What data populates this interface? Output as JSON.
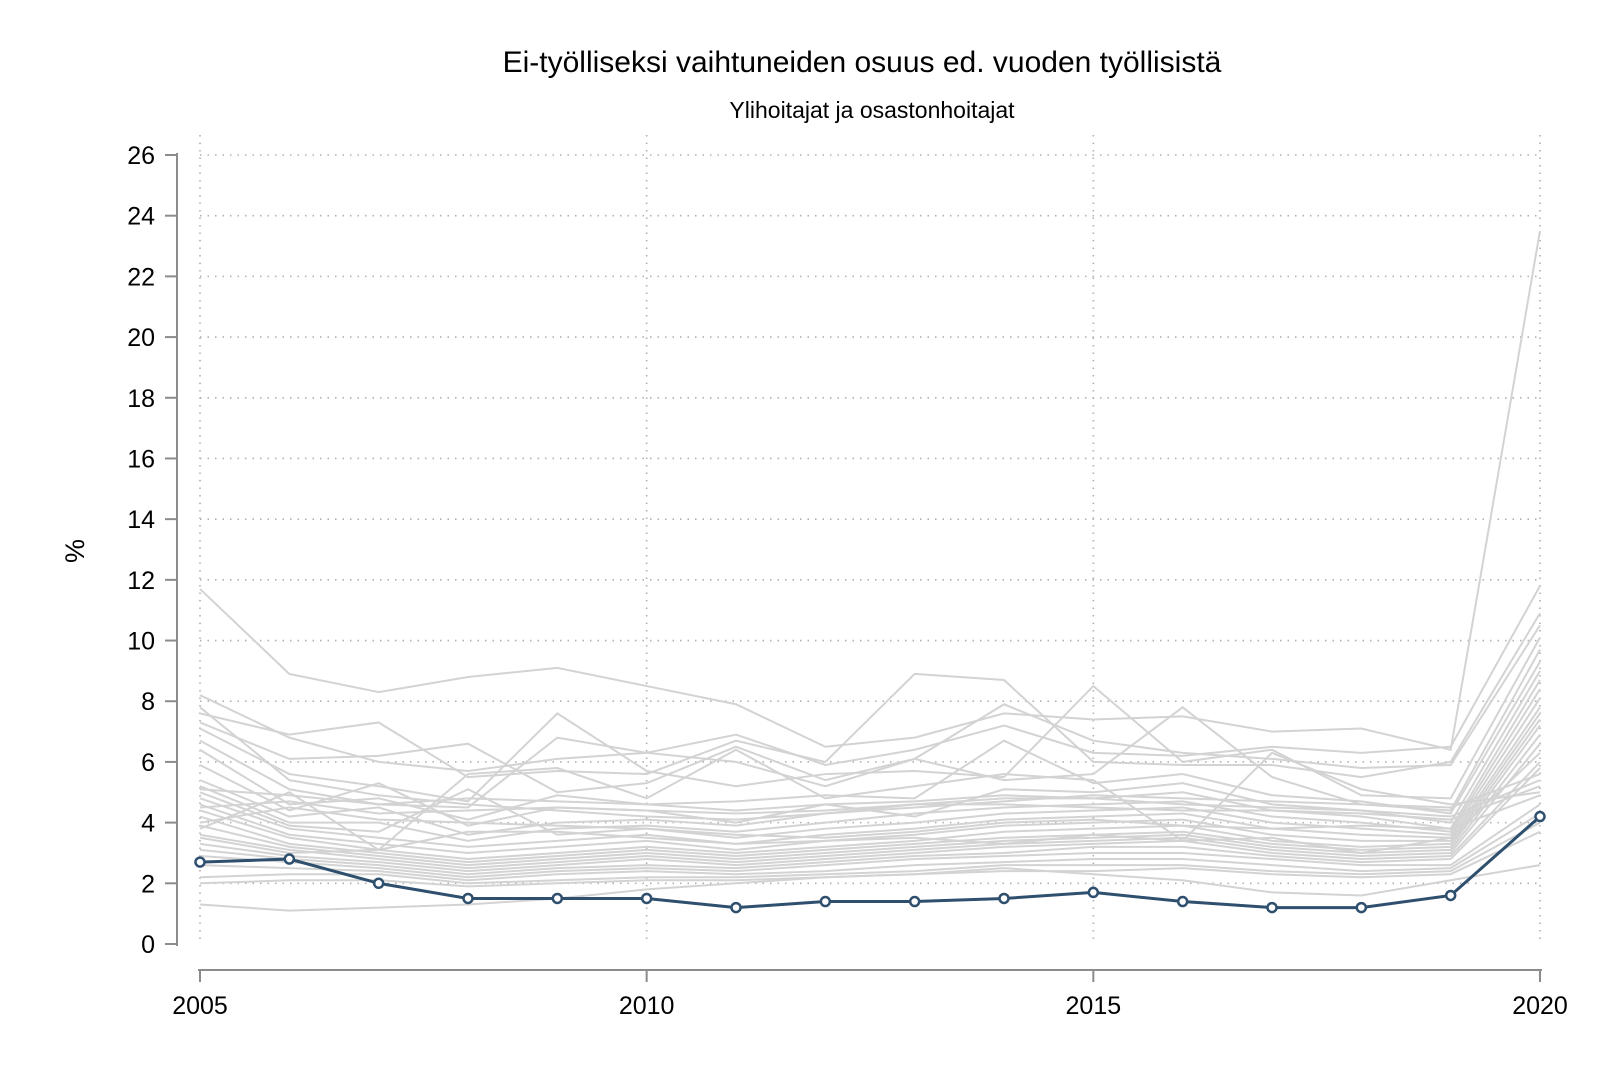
{
  "chart_data": {
    "type": "line",
    "title": "Ei-työlliseksi vaihtuneiden osuus ed. vuoden työllisistä",
    "subtitle": "Ylihoitajat ja osastonhoitajat",
    "ylabel": "%",
    "xlabel": "",
    "ylim": [
      0,
      26
    ],
    "xlim": [
      2005,
      2020
    ],
    "x_ticks": [
      2005,
      2010,
      2015,
      2020
    ],
    "y_ticks": [
      0,
      2,
      4,
      6,
      8,
      10,
      12,
      14,
      16,
      18,
      20,
      22,
      24,
      26
    ],
    "grid": "dotted, major ticks",
    "legend": "none",
    "x": [
      2005,
      2006,
      2007,
      2008,
      2009,
      2010,
      2011,
      2012,
      2013,
      2014,
      2015,
      2016,
      2017,
      2018,
      2019,
      2020
    ],
    "highlight": {
      "color": "#2e4f6e",
      "values": [
        2.7,
        2.8,
        2.0,
        1.5,
        1.5,
        1.5,
        1.2,
        1.4,
        1.4,
        1.5,
        1.7,
        1.4,
        1.2,
        1.2,
        1.6,
        4.2
      ]
    },
    "background_color": "#d3d3d3",
    "background_series": [
      {
        "values": [
          11.7,
          8.9,
          8.3,
          8.8,
          9.1,
          8.5,
          7.9,
          6.5,
          6.8,
          7.6,
          7.4,
          7.5,
          7.0,
          7.1,
          6.4,
          23.5
        ]
      },
      {
        "values": [
          8.2,
          6.8,
          6.0,
          5.7,
          6.1,
          6.3,
          6.9,
          5.9,
          6.4,
          7.2,
          6.3,
          6.2,
          6.5,
          6.3,
          6.5,
          11.8
        ]
      },
      {
        "values": [
          7.6,
          6.9,
          7.3,
          5.5,
          5.7,
          5.6,
          6.7,
          6.0,
          8.9,
          8.7,
          6.0,
          5.9,
          5.9,
          5.5,
          6.0,
          10.9
        ]
      },
      {
        "values": [
          7.3,
          6.1,
          6.2,
          6.6,
          5.0,
          5.3,
          6.5,
          5.4,
          6.1,
          7.9,
          6.7,
          6.3,
          6.1,
          5.8,
          5.9,
          10.5
        ]
      },
      {
        "values": [
          7.1,
          5.6,
          5.2,
          4.7,
          7.6,
          5.7,
          5.2,
          5.6,
          5.7,
          5.5,
          8.5,
          6.0,
          6.4,
          4.9,
          4.8,
          10.1
        ]
      },
      {
        "values": [
          6.7,
          5.1,
          4.6,
          4.5,
          6.8,
          6.3,
          6.0,
          5.2,
          6.1,
          5.4,
          5.6,
          7.8,
          5.5,
          4.6,
          4.4,
          9.7
        ]
      },
      {
        "values": [
          6.4,
          4.6,
          4.8,
          4.1,
          4.9,
          4.6,
          4.7,
          4.9,
          4.8,
          6.7,
          5.3,
          5.6,
          4.9,
          4.7,
          4.3,
          9.3
        ]
      },
      {
        "values": [
          5.9,
          4.4,
          5.3,
          3.9,
          4.5,
          4.4,
          4.0,
          4.6,
          4.2,
          5.1,
          5.0,
          5.3,
          4.6,
          4.4,
          4.0,
          9.0
        ]
      },
      {
        "values": [
          5.4,
          4.2,
          4.5,
          3.6,
          4.0,
          4.1,
          3.9,
          4.3,
          4.6,
          4.8,
          4.8,
          5.0,
          4.4,
          4.2,
          3.8,
          8.7
        ]
      },
      {
        "values": [
          5.2,
          4.0,
          4.0,
          3.4,
          3.8,
          3.9,
          3.7,
          4.0,
          4.3,
          4.5,
          4.6,
          4.7,
          4.2,
          4.0,
          3.7,
          8.4
        ]
      },
      {
        "values": [
          5.0,
          3.9,
          3.7,
          5.1,
          3.6,
          3.8,
          3.5,
          3.8,
          4.0,
          4.3,
          4.4,
          4.5,
          4.0,
          3.8,
          3.6,
          8.1
        ]
      },
      {
        "values": [
          4.8,
          3.8,
          3.5,
          3.2,
          3.4,
          3.6,
          3.3,
          3.6,
          3.8,
          4.1,
          4.2,
          4.3,
          3.8,
          3.6,
          3.5,
          7.8
        ]
      },
      {
        "values": [
          4.6,
          3.6,
          3.3,
          3.0,
          3.2,
          3.4,
          3.1,
          3.4,
          3.6,
          3.9,
          4.0,
          4.1,
          3.6,
          3.4,
          3.4,
          7.6
        ]
      },
      {
        "values": [
          4.4,
          3.5,
          3.1,
          2.8,
          3.0,
          3.2,
          3.0,
          3.2,
          3.4,
          3.7,
          3.8,
          3.9,
          3.4,
          3.2,
          3.3,
          7.4
        ]
      },
      {
        "values": [
          4.2,
          3.3,
          3.0,
          2.7,
          2.9,
          3.1,
          2.9,
          3.1,
          3.3,
          3.5,
          3.6,
          3.7,
          3.3,
          3.1,
          3.2,
          7.2
        ]
      },
      {
        "values": [
          3.9,
          3.2,
          2.9,
          2.6,
          2.8,
          3.0,
          2.8,
          3.0,
          3.2,
          3.4,
          3.5,
          3.6,
          3.2,
          3.0,
          3.1,
          6.9
        ]
      },
      {
        "values": [
          3.6,
          3.1,
          2.8,
          2.5,
          2.7,
          2.9,
          2.7,
          2.9,
          3.1,
          3.3,
          3.4,
          3.5,
          3.1,
          2.9,
          3.0,
          6.6
        ]
      },
      {
        "values": [
          3.5,
          3.0,
          3.1,
          3.7,
          3.7,
          3.5,
          3.3,
          3.4,
          3.5,
          3.3,
          3.6,
          3.4,
          3.5,
          3.0,
          3.5,
          6.3
        ]
      },
      {
        "values": [
          3.3,
          2.9,
          2.7,
          2.4,
          2.6,
          2.8,
          2.6,
          2.8,
          3.0,
          3.2,
          3.3,
          3.4,
          3.0,
          2.8,
          2.9,
          6.0
        ]
      },
      {
        "values": [
          3.1,
          2.8,
          2.6,
          2.3,
          2.5,
          2.6,
          2.5,
          2.7,
          2.9,
          3.0,
          3.2,
          3.2,
          2.9,
          2.7,
          2.8,
          5.8
        ]
      },
      {
        "values": [
          7.8,
          5.4,
          4.9,
          4.6,
          4.4,
          4.2,
          4.1,
          4.3,
          4.5,
          4.7,
          4.9,
          4.8,
          4.7,
          4.6,
          4.5,
          5.6
        ]
      },
      {
        "values": [
          5.1,
          4.9,
          4.6,
          4.8,
          4.7,
          4.6,
          4.4,
          4.6,
          4.7,
          4.9,
          4.8,
          4.6,
          4.5,
          4.4,
          4.2,
          5.4
        ]
      },
      {
        "values": [
          4.5,
          4.7,
          4.3,
          4.4,
          4.5,
          4.4,
          4.3,
          4.4,
          4.6,
          4.6,
          4.5,
          4.4,
          4.4,
          4.3,
          4.1,
          5.2
        ]
      },
      {
        "values": [
          3.8,
          5.0,
          3.1,
          5.6,
          5.8,
          4.8,
          6.4,
          4.8,
          5.2,
          5.6,
          5.4,
          3.4,
          6.3,
          5.1,
          4.6,
          5.0
        ]
      },
      {
        "values": [
          4.0,
          4.5,
          4.1,
          4.0,
          3.9,
          3.8,
          3.6,
          3.5,
          3.7,
          4.0,
          4.1,
          3.9,
          3.8,
          3.9,
          3.8,
          4.9
        ]
      },
      {
        "values": [
          2.9,
          2.7,
          2.5,
          2.2,
          2.4,
          2.5,
          2.4,
          2.6,
          2.8,
          2.9,
          3.0,
          3.0,
          2.8,
          2.6,
          2.6,
          4.6
        ]
      },
      {
        "values": [
          2.6,
          2.5,
          2.4,
          2.1,
          2.3,
          2.4,
          2.3,
          2.4,
          2.6,
          2.7,
          2.8,
          2.8,
          2.6,
          2.4,
          2.5,
          4.3
        ]
      },
      {
        "values": [
          2.2,
          2.3,
          2.3,
          2.0,
          2.1,
          2.2,
          2.2,
          2.3,
          2.4,
          2.6,
          2.6,
          2.6,
          2.4,
          2.3,
          2.4,
          4.0
        ]
      },
      {
        "values": [
          2.0,
          2.1,
          2.1,
          1.9,
          2.0,
          2.1,
          2.1,
          2.2,
          2.3,
          2.4,
          2.4,
          2.5,
          2.3,
          2.2,
          2.3,
          3.7
        ]
      },
      {
        "values": [
          1.3,
          1.1,
          1.2,
          1.3,
          1.5,
          1.8,
          2.0,
          2.2,
          2.3,
          2.5,
          2.3,
          2.1,
          1.7,
          1.6,
          2.1,
          2.6
        ]
      }
    ]
  }
}
